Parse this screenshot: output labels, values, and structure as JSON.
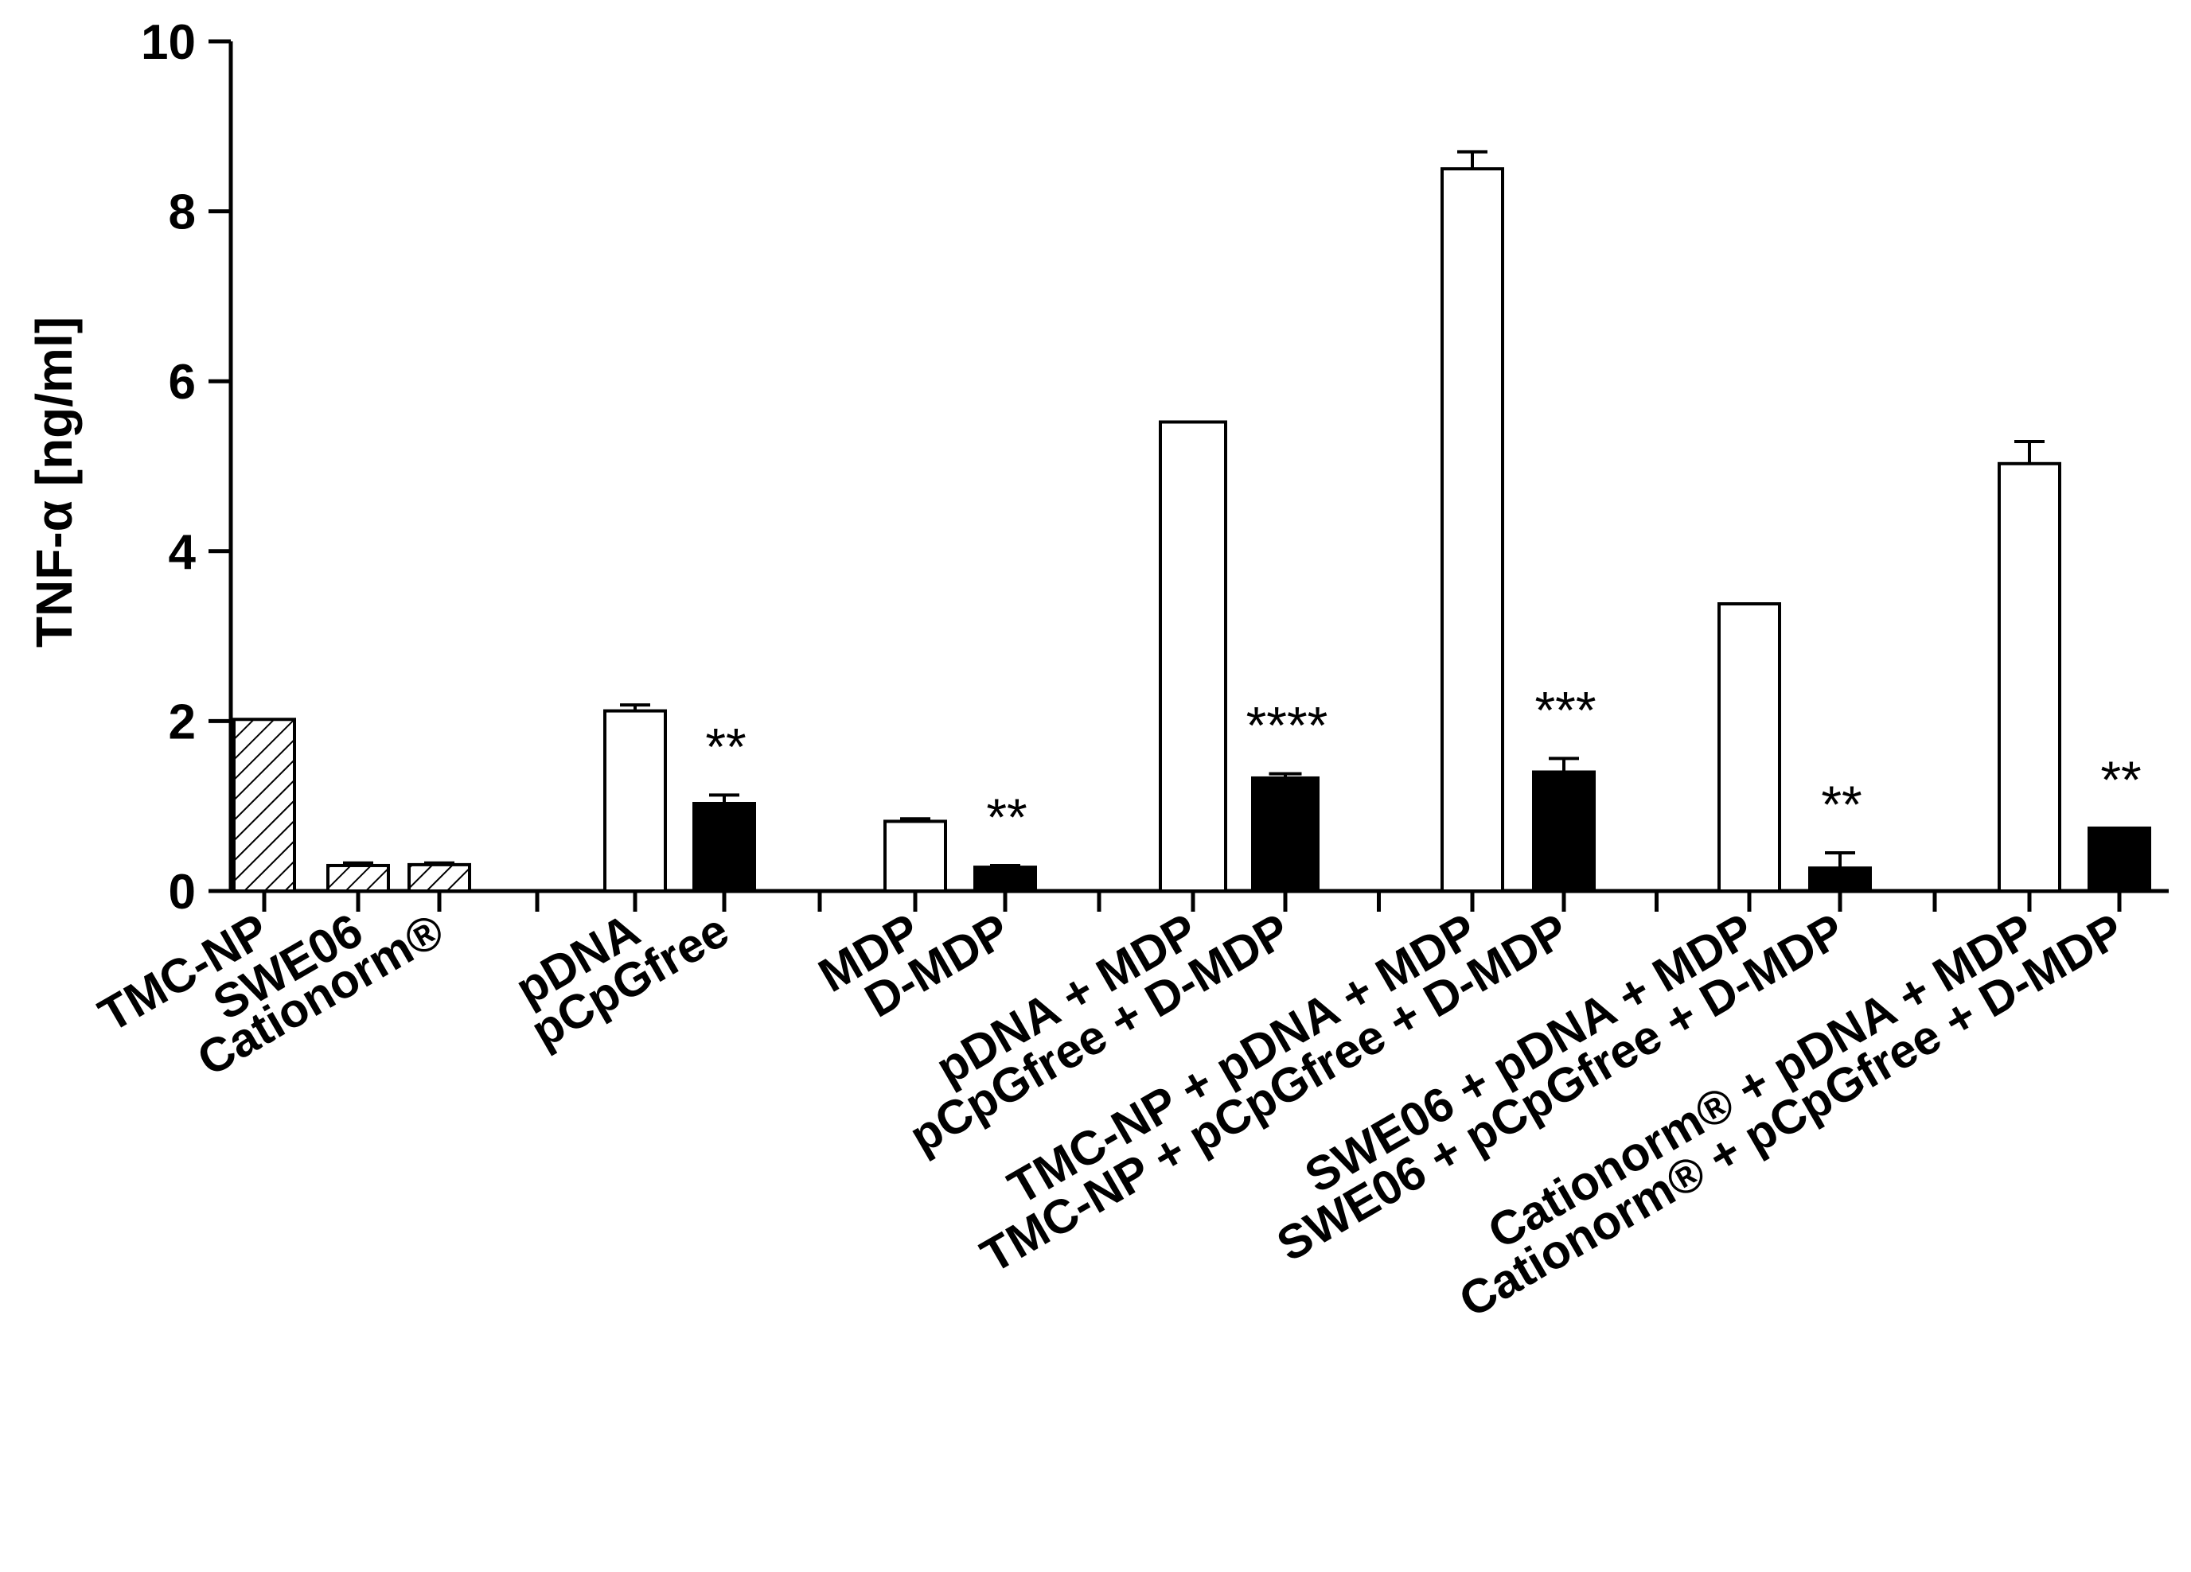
{
  "chart_data": {
    "type": "bar",
    "title": "",
    "xlabel": "",
    "ylabel": "TNF-α [ng/ml]",
    "ylim": [
      0,
      10
    ],
    "yticks": [
      0,
      2,
      4,
      6,
      8,
      10
    ],
    "grid": false,
    "legend": "none",
    "bar_styles": {
      "hatched": {
        "fill": "#ffffff",
        "stroke": "#000000",
        "pattern": "diagonal-hatch"
      },
      "white": {
        "fill": "#ffffff",
        "stroke": "#000000"
      },
      "black": {
        "fill": "#000000",
        "stroke": "#000000"
      }
    },
    "groups": [
      {
        "bars": [
          {
            "label": "TMC-NP",
            "value": 2.02,
            "error": 0.0,
            "style": "hatched",
            "annotation": ""
          },
          {
            "label": "SWE06",
            "value": 0.3,
            "error": 0.03,
            "style": "hatched",
            "annotation": ""
          },
          {
            "label": "Cationorm®",
            "value": 0.31,
            "error": 0.02,
            "style": "hatched",
            "annotation": ""
          }
        ]
      },
      {
        "bars": [
          {
            "label": "pDNA",
            "value": 2.12,
            "error": 0.07,
            "style": "white",
            "annotation": ""
          },
          {
            "label": "pCpGfree",
            "value": 1.03,
            "error": 0.1,
            "style": "black",
            "annotation": "**"
          }
        ]
      },
      {
        "bars": [
          {
            "label": "MDP",
            "value": 0.82,
            "error": 0.03,
            "style": "white",
            "annotation": ""
          },
          {
            "label": "D-MDP",
            "value": 0.28,
            "error": 0.02,
            "style": "black",
            "annotation": "**"
          }
        ]
      },
      {
        "bars": [
          {
            "label": "pDNA + MDP",
            "value": 5.52,
            "error": 0.0,
            "style": "white",
            "annotation": ""
          },
          {
            "label": "pCpGfree + D-MDP",
            "value": 1.33,
            "error": 0.05,
            "style": "black",
            "annotation": "****"
          }
        ]
      },
      {
        "bars": [
          {
            "label": "TMC-NP + pDNA + MDP",
            "value": 8.5,
            "error": 0.2,
            "style": "white",
            "annotation": ""
          },
          {
            "label": "TMC-NP + pCpGfree + D-MDP",
            "value": 1.4,
            "error": 0.16,
            "style": "black",
            "annotation": "***"
          }
        ]
      },
      {
        "bars": [
          {
            "label": "SWE06 + pDNA + MDP",
            "value": 3.38,
            "error": 0.0,
            "style": "white",
            "annotation": ""
          },
          {
            "label": "SWE06 + pCpGfree + D-MDP",
            "value": 0.27,
            "error": 0.18,
            "style": "black",
            "annotation": "**"
          }
        ]
      },
      {
        "bars": [
          {
            "label": "Cationorm® + pDNA + MDP",
            "value": 5.03,
            "error": 0.26,
            "style": "white",
            "annotation": ""
          },
          {
            "label": "Cationorm® + pCpGfree + D-MDP",
            "value": 0.74,
            "error": 0.0,
            "style": "black",
            "annotation": "**"
          }
        ]
      }
    ]
  }
}
